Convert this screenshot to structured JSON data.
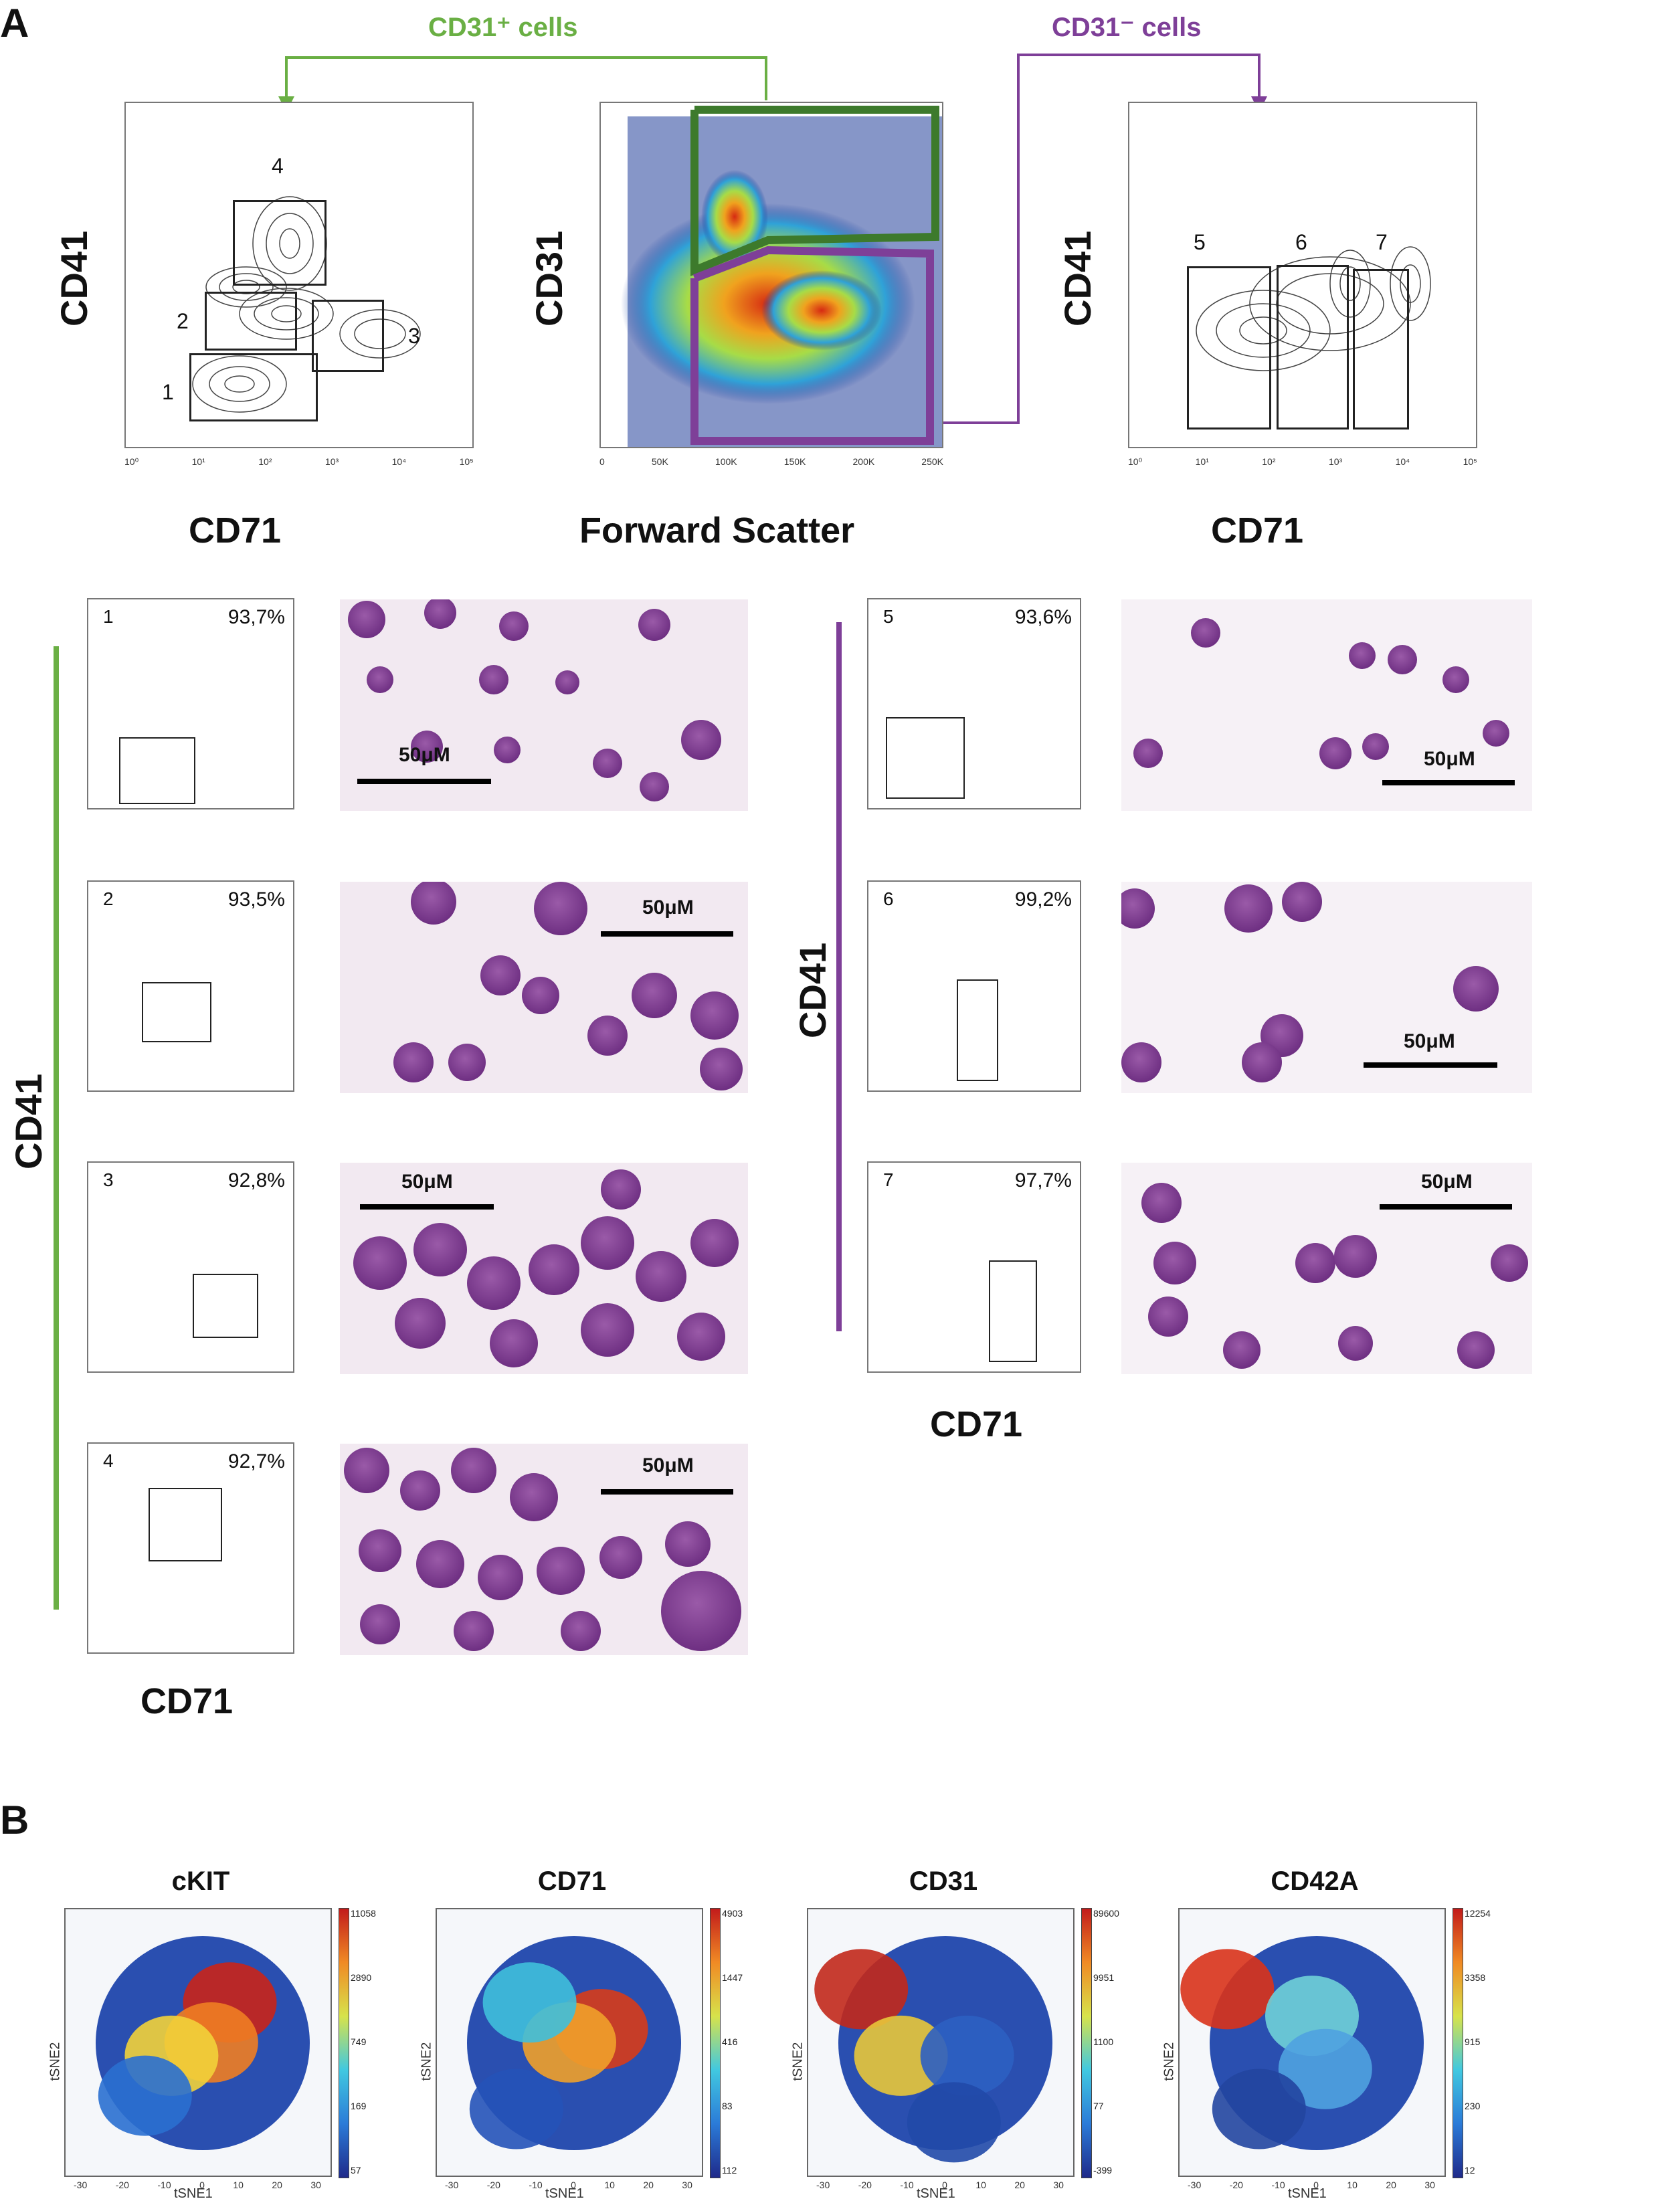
{
  "panelA": {
    "letter": "A",
    "arrow_pos_label": "CD31⁺ cells",
    "arrow_neg_label": "CD31⁻ cells",
    "colors": {
      "green": "#6aaf44",
      "purple": "#7e3f98"
    },
    "left_plot": {
      "ylabel": "CD41",
      "xlabel": "CD71",
      "gates": [
        "1",
        "2",
        "3",
        "4"
      ],
      "xticks": [
        "10⁰",
        "10¹",
        "10²",
        "10³",
        "10⁴",
        "10⁵"
      ]
    },
    "middle_plot": {
      "ylabel": "CD31",
      "xlabel": "Forward Scatter",
      "xticks": [
        "0",
        "50K",
        "100K",
        "150K",
        "200K",
        "250K"
      ]
    },
    "right_plot": {
      "ylabel": "CD41",
      "xlabel": "CD71",
      "gates": [
        "5",
        "6",
        "7"
      ],
      "xticks": [
        "10⁰",
        "10¹",
        "10²",
        "10³",
        "10⁴",
        "10⁵"
      ]
    },
    "sorted_left": [
      {
        "gate": "1",
        "percent": "93,7%"
      },
      {
        "gate": "2",
        "percent": "93,5%"
      },
      {
        "gate": "3",
        "percent": "92,8%"
      },
      {
        "gate": "4",
        "percent": "92,7%"
      }
    ],
    "sorted_right": [
      {
        "gate": "5",
        "percent": "93,6%"
      },
      {
        "gate": "6",
        "percent": "99,2%"
      },
      {
        "gate": "7",
        "percent": "97,7%"
      }
    ],
    "scale_label": "50μM",
    "left_column_ylabel": "CD41",
    "left_column_xlabel": "CD71",
    "right_column_ylabel": "CD41",
    "right_column_xlabel": "CD71"
  },
  "panelB": {
    "letter": "B",
    "xlabel": "tSNE1",
    "ylabel": "tSNE2",
    "axis_ticks": [
      "-30",
      "-20",
      "-10",
      "0",
      "10",
      "20",
      "30"
    ],
    "maps": [
      {
        "title": "cKIT",
        "colorbar": [
          "11058",
          "2890",
          "749",
          "169",
          "57"
        ]
      },
      {
        "title": "CD71",
        "colorbar": [
          "4903",
          "1447",
          "416",
          "83",
          "112"
        ]
      },
      {
        "title": "CD31",
        "colorbar": [
          "89600",
          "9951",
          "1100",
          "77",
          "-399"
        ]
      },
      {
        "title": "CD42A",
        "colorbar": [
          "12254",
          "3358",
          "915",
          "230",
          "12"
        ]
      }
    ]
  }
}
